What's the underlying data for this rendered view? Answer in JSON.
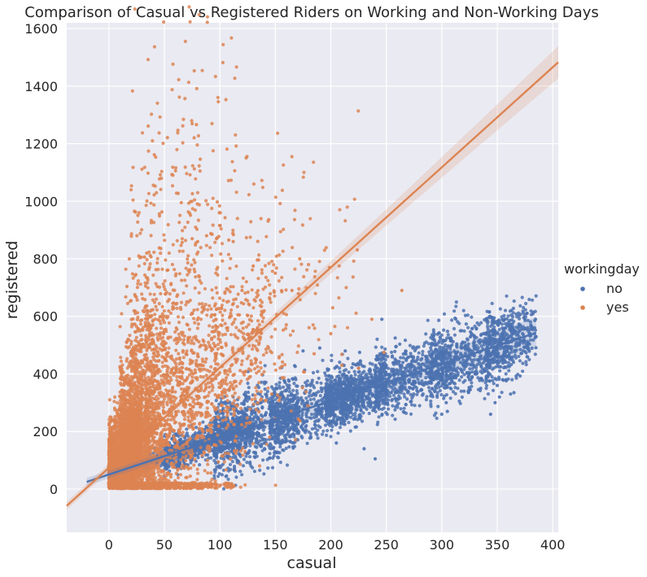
{
  "chart_data": {
    "type": "scatter",
    "title": "Comparison of Casual vs Registered Riders on Working and Non-Working Days",
    "xlabel": "casual",
    "ylabel": "registered",
    "xlim": [
      -38,
      405
    ],
    "ylim": [
      -150,
      1620
    ],
    "xticks": [
      "0",
      "50",
      "100",
      "150",
      "200",
      "250",
      "300",
      "350",
      "400"
    ],
    "yticks": [
      "0",
      "200",
      "400",
      "600",
      "800",
      "1000",
      "1200",
      "1400",
      "1600"
    ],
    "grid": true,
    "legend": {
      "title": "workingday",
      "placement": "right"
    },
    "series": [
      {
        "name": "no",
        "color": "#4c72b0",
        "regression": {
          "x": [
            -20,
            385
          ],
          "y": [
            25,
            543
          ]
        },
        "cloud": [
          [
            5,
            60,
            8,
            150
          ],
          [
            20,
            100,
            15,
            400
          ],
          [
            50,
            130,
            30,
            700
          ],
          [
            95,
            170,
            70,
            800
          ],
          [
            145,
            230,
            55,
            700
          ],
          [
            195,
            250,
            45,
            620
          ],
          [
            240,
            310,
            55,
            620
          ],
          [
            290,
            365,
            70,
            600
          ],
          [
            340,
            385,
            60,
            360
          ]
        ],
        "points": [
          [
            175,
            480
          ],
          [
            190,
            490
          ],
          [
            213,
            480
          ],
          [
            226,
            475
          ],
          [
            258,
            525
          ],
          [
            220,
            435
          ],
          [
            243,
            450
          ],
          [
            265,
            440
          ],
          [
            278,
            450
          ],
          [
            299,
            450
          ],
          [
            317,
            440
          ],
          [
            332,
            432
          ],
          [
            330,
            400
          ],
          [
            350,
            360
          ],
          [
            355,
            380
          ],
          [
            358,
            380
          ],
          [
            348,
            300
          ],
          [
            352,
            320
          ],
          [
            362,
            330
          ],
          [
            365,
            335
          ],
          [
            344,
            260
          ],
          [
            325,
            380
          ],
          [
            320,
            340
          ],
          [
            335,
            350
          ],
          [
            304,
            300
          ],
          [
            240,
            105
          ],
          [
            230,
            140
          ],
          [
            205,
            160
          ],
          [
            300,
            260
          ],
          [
            305,
            270
          ],
          [
            246,
            590
          ]
        ]
      },
      {
        "name": "yes",
        "color": "#dd8452",
        "regression": {
          "x": [
            -38,
            405
          ],
          "y": [
            -58,
            1483
          ]
        },
        "cloud": [
          [
            0,
            40,
            5,
            2400
          ],
          [
            0,
            30,
            80,
            1800
          ],
          [
            10,
            40,
            180,
            1100
          ],
          [
            15,
            50,
            260,
            600
          ],
          [
            20,
            55,
            350,
            420
          ],
          [
            25,
            75,
            420,
            280
          ],
          [
            35,
            85,
            500,
            220
          ],
          [
            40,
            100,
            560,
            160
          ],
          [
            55,
            115,
            620,
            120
          ],
          [
            60,
            115,
            700,
            110
          ],
          [
            70,
            125,
            760,
            60
          ],
          [
            40,
            140,
            120,
            500
          ],
          [
            60,
            160,
            220,
            220
          ],
          [
            80,
            190,
            250,
            180
          ],
          [
            90,
            230,
            300,
            70
          ],
          [
            20,
            40,
            640,
            50
          ],
          [
            20,
            50,
            730,
            35
          ],
          [
            28,
            40,
            790,
            15
          ]
        ],
        "points": [
          [
            88,
            880
          ],
          [
            93,
            885
          ],
          [
            97,
            870
          ],
          [
            108,
            865
          ],
          [
            112,
            860
          ],
          [
            27,
            810
          ],
          [
            32,
            806
          ],
          [
            75,
            870
          ],
          [
            80,
            860
          ],
          [
            172,
            800
          ],
          [
            130,
            775
          ],
          [
            150,
            750
          ],
          [
            120,
            690
          ],
          [
            145,
            660
          ],
          [
            165,
            690
          ],
          [
            264,
            690
          ],
          [
            237,
            590
          ],
          [
            185,
            470
          ],
          [
            210,
            430
          ],
          [
            248,
            475
          ],
          [
            225,
            420
          ],
          [
            200,
            540
          ]
        ]
      }
    ]
  }
}
